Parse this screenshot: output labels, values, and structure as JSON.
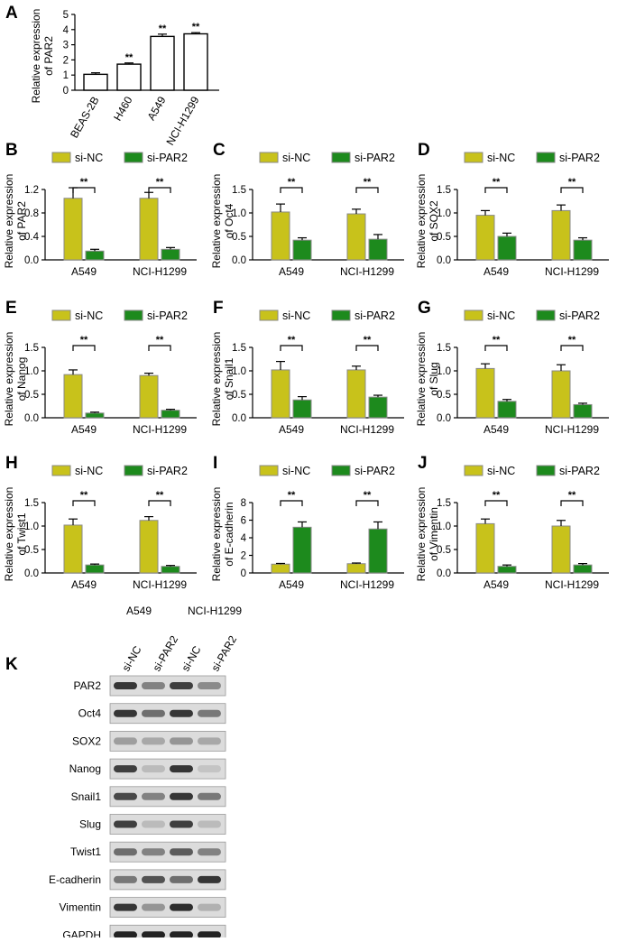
{
  "colors": {
    "si_nc": "#c8c21b",
    "si_par2": "#1d8a1d",
    "bar_outline": "#8a8a8a",
    "bar_white": "#ffffff"
  },
  "panel_a": {
    "letter": "A",
    "chart_data": {
      "type": "bar",
      "title": "",
      "categories": [
        "BEAS-2B",
        "H460",
        "A549",
        "NCI-H1299"
      ],
      "values": [
        1.05,
        1.72,
        3.55,
        3.72
      ],
      "errors": [
        0.1,
        0.08,
        0.15,
        0.08
      ],
      "significance": [
        "",
        "**",
        "**",
        "**"
      ],
      "xlabel": "",
      "ylabel_lines": [
        "Relative expression",
        "of PAR2"
      ],
      "yticks": [
        "0",
        "1",
        "2",
        "3",
        "4",
        "5"
      ],
      "ylim": [
        0,
        5
      ]
    }
  },
  "legend": {
    "si_nc": "si-NC",
    "si_par2": "si-PAR2"
  },
  "sig_label": "**",
  "grouped_panels": [
    {
      "letter": "B",
      "chart_data": {
        "type": "bar",
        "title": "",
        "categories": [
          "A549",
          "NCI-H1299"
        ],
        "series": [
          {
            "name": "si-NC",
            "values": [
              1.05,
              1.05
            ],
            "errors": [
              0.18,
              0.1
            ]
          },
          {
            "name": "si-PAR2",
            "values": [
              0.15,
              0.18
            ],
            "errors": [
              0.03,
              0.03
            ]
          }
        ],
        "ylabel_lines": [
          "Relative expression",
          "of PAR2"
        ],
        "yticks": [
          "0.0",
          "0.4",
          "0.8",
          "1.2"
        ],
        "ylim": [
          0,
          1.2
        ],
        "ytick_values": [
          0,
          0.4,
          0.8,
          1.2
        ],
        "xlabel": ""
      }
    },
    {
      "letter": "C",
      "chart_data": {
        "type": "bar",
        "title": "",
        "categories": [
          "A549",
          "NCI-H1299"
        ],
        "series": [
          {
            "name": "si-NC",
            "values": [
              1.02,
              0.98
            ],
            "errors": [
              0.17,
              0.1
            ]
          },
          {
            "name": "si-PAR2",
            "values": [
              0.42,
              0.44
            ],
            "errors": [
              0.05,
              0.1
            ]
          }
        ],
        "ylabel_lines": [
          "Relative expression",
          "of Oct4"
        ],
        "yticks": [
          "0.0",
          "0.5",
          "1.0",
          "1.5"
        ],
        "ylim": [
          0,
          1.5
        ],
        "ytick_values": [
          0,
          0.5,
          1.0,
          1.5
        ],
        "xlabel": ""
      }
    },
    {
      "letter": "D",
      "chart_data": {
        "type": "bar",
        "title": "",
        "categories": [
          "A549",
          "NCI-H1299"
        ],
        "series": [
          {
            "name": "si-NC",
            "values": [
              0.95,
              1.05
            ],
            "errors": [
              0.1,
              0.12
            ]
          },
          {
            "name": "si-PAR2",
            "values": [
              0.5,
              0.42
            ],
            "errors": [
              0.07,
              0.05
            ]
          }
        ],
        "ylabel_lines": [
          "Relative expression",
          "of SOX2"
        ],
        "yticks": [
          "0.0",
          "0.5",
          "1.0",
          "1.5"
        ],
        "ylim": [
          0,
          1.5
        ],
        "ytick_values": [
          0,
          0.5,
          1.0,
          1.5
        ],
        "xlabel": ""
      }
    },
    {
      "letter": "E",
      "chart_data": {
        "type": "bar",
        "title": "",
        "categories": [
          "A549",
          "NCI-H1299"
        ],
        "series": [
          {
            "name": "si-NC",
            "values": [
              0.92,
              0.9
            ],
            "errors": [
              0.1,
              0.05
            ]
          },
          {
            "name": "si-PAR2",
            "values": [
              0.1,
              0.16
            ],
            "errors": [
              0.02,
              0.02
            ]
          }
        ],
        "ylabel_lines": [
          "Relative expression",
          "of Nanog"
        ],
        "yticks": [
          "0.0",
          "0.5",
          "1.0",
          "1.5"
        ],
        "ylim": [
          0,
          1.5
        ],
        "ytick_values": [
          0,
          0.5,
          1.0,
          1.5
        ],
        "xlabel": ""
      }
    },
    {
      "letter": "F",
      "chart_data": {
        "type": "bar",
        "title": "",
        "categories": [
          "A549",
          "NCI-H1299"
        ],
        "series": [
          {
            "name": "si-NC",
            "values": [
              1.02,
              1.02
            ],
            "errors": [
              0.18,
              0.08
            ]
          },
          {
            "name": "si-PAR2",
            "values": [
              0.38,
              0.44
            ],
            "errors": [
              0.07,
              0.04
            ]
          }
        ],
        "ylabel_lines": [
          "Relative expression",
          "of Snail1"
        ],
        "yticks": [
          "0.0",
          "0.5",
          "1.0",
          "1.5"
        ],
        "ylim": [
          0,
          1.5
        ],
        "ytick_values": [
          0,
          0.5,
          1.0,
          1.5
        ],
        "xlabel": ""
      }
    },
    {
      "letter": "G",
      "chart_data": {
        "type": "bar",
        "title": "",
        "categories": [
          "A549",
          "NCI-H1299"
        ],
        "series": [
          {
            "name": "si-NC",
            "values": [
              1.05,
              1.0
            ],
            "errors": [
              0.1,
              0.13
            ]
          },
          {
            "name": "si-PAR2",
            "values": [
              0.35,
              0.28
            ],
            "errors": [
              0.04,
              0.03
            ]
          }
        ],
        "ylabel_lines": [
          "Relative expression",
          "of Slug"
        ],
        "yticks": [
          "0.0",
          "0.5",
          "1.0",
          "1.5"
        ],
        "ylim": [
          0,
          1.5
        ],
        "ytick_values": [
          0,
          0.5,
          1.0,
          1.5
        ],
        "xlabel": ""
      }
    },
    {
      "letter": "H",
      "chart_data": {
        "type": "bar",
        "title": "",
        "categories": [
          "A549",
          "NCI-H1299"
        ],
        "series": [
          {
            "name": "si-NC",
            "values": [
              1.02,
              1.12
            ],
            "errors": [
              0.13,
              0.08
            ]
          },
          {
            "name": "si-PAR2",
            "values": [
              0.17,
              0.14
            ],
            "errors": [
              0.02,
              0.02
            ]
          }
        ],
        "ylabel_lines": [
          "Relative expression",
          "of Twist1"
        ],
        "yticks": [
          "0.0",
          "0.5",
          "1.0",
          "1.5"
        ],
        "yticks_display": [
          "0.0",
          "0.5",
          "1.0",
          "1.5"
        ],
        "ylim": [
          0,
          1.5
        ],
        "ytick_values": [
          0,
          0.5,
          1.0,
          1.5
        ],
        "xlabel": ""
      }
    },
    {
      "letter": "I",
      "chart_data": {
        "type": "bar",
        "title": "",
        "categories": [
          "A549",
          "NCI-H1299"
        ],
        "series": [
          {
            "name": "si-NC",
            "values": [
              1.0,
              1.05
            ],
            "errors": [
              0.08,
              0.08
            ]
          },
          {
            "name": "si-PAR2",
            "values": [
              5.2,
              5.0
            ],
            "errors": [
              0.6,
              0.8
            ]
          }
        ],
        "ylabel_lines": [
          "Relative expression",
          "of E-cadherin"
        ],
        "yticks": [
          "0",
          "2",
          "4",
          "6",
          "8"
        ],
        "ylim": [
          0,
          8
        ],
        "ytick_values": [
          0,
          2,
          4,
          6,
          8
        ],
        "xlabel": ""
      }
    },
    {
      "letter": "J",
      "chart_data": {
        "type": "bar",
        "title": "",
        "categories": [
          "A549",
          "NCI-H1299"
        ],
        "series": [
          {
            "name": "si-NC",
            "values": [
              1.05,
              1.0
            ],
            "errors": [
              0.1,
              0.12
            ]
          },
          {
            "name": "si-PAR2",
            "values": [
              0.14,
              0.17
            ],
            "errors": [
              0.03,
              0.03
            ]
          }
        ],
        "ylabel_lines": [
          "Relative expression",
          "of Vimentin"
        ],
        "yticks": [
          "0.0",
          "0.5",
          "1.0",
          "1.5"
        ],
        "ylim": [
          0,
          1.5
        ],
        "ytick_values": [
          0,
          0.5,
          1.0,
          1.5
        ],
        "xlabel": ""
      }
    }
  ],
  "panel_k": {
    "letter": "K",
    "cell_lines": [
      "A549",
      "NCI-H1299"
    ],
    "lanes": [
      "si-NC",
      "si-PAR2",
      "si-NC",
      "si-PAR2"
    ],
    "blots": [
      {
        "label": "PAR2",
        "intensity": [
          0.85,
          0.45,
          0.8,
          0.4
        ]
      },
      {
        "label": "Oct4",
        "intensity": [
          0.85,
          0.55,
          0.85,
          0.5
        ]
      },
      {
        "label": "SOX2",
        "intensity": [
          0.3,
          0.25,
          0.35,
          0.25
        ]
      },
      {
        "label": "Nanog",
        "intensity": [
          0.8,
          0.15,
          0.85,
          0.1
        ]
      },
      {
        "label": "Snail1",
        "intensity": [
          0.75,
          0.45,
          0.85,
          0.5
        ]
      },
      {
        "label": "Slug",
        "intensity": [
          0.8,
          0.15,
          0.8,
          0.15
        ]
      },
      {
        "label": "Twist1",
        "intensity": [
          0.55,
          0.45,
          0.65,
          0.45
        ]
      },
      {
        "label": "E-cadherin",
        "intensity": [
          0.5,
          0.7,
          0.55,
          0.85
        ]
      },
      {
        "label": "Vimentin",
        "intensity": [
          0.85,
          0.35,
          0.9,
          0.2
        ]
      },
      {
        "label": "GAPDH",
        "intensity": [
          0.95,
          0.95,
          0.95,
          0.95
        ]
      }
    ]
  }
}
